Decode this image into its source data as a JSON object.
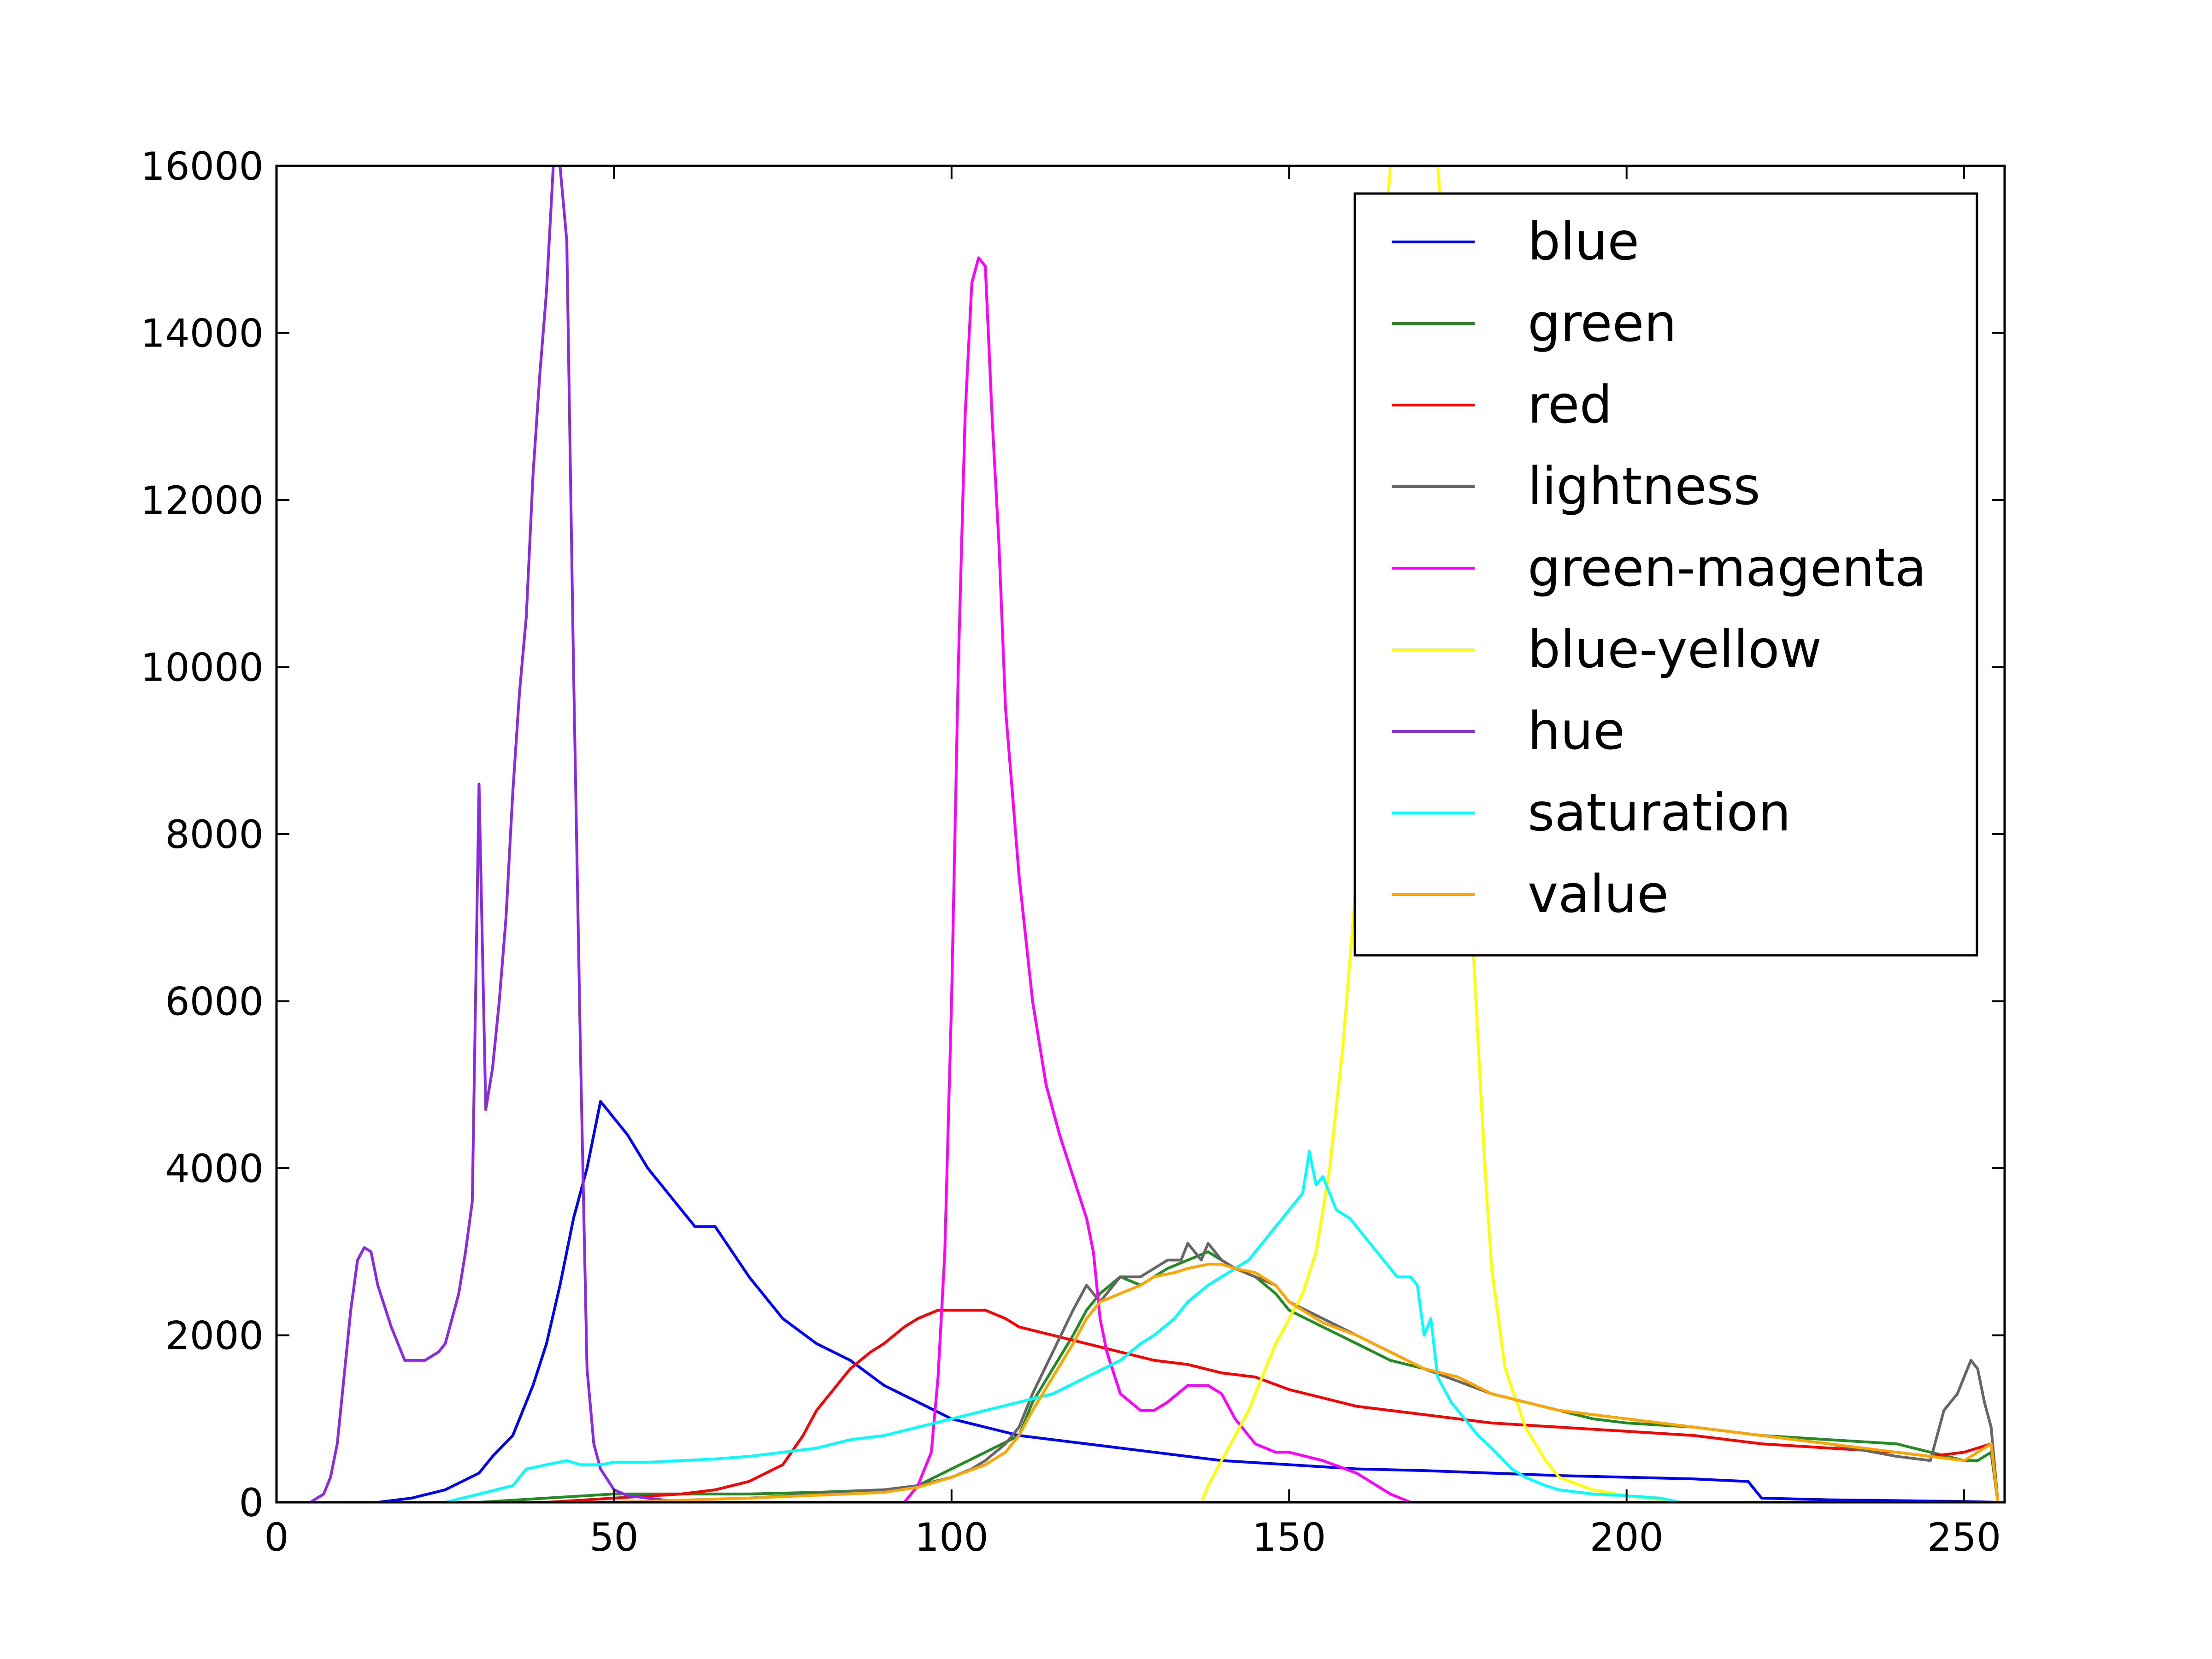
{
  "chart_data": {
    "type": "line",
    "title": "",
    "xlabel": "",
    "ylabel": "",
    "xlim": [
      0,
      256
    ],
    "ylim": [
      0,
      16000
    ],
    "xticks": [
      0,
      50,
      100,
      150,
      200,
      250
    ],
    "yticks": [
      0,
      2000,
      4000,
      6000,
      8000,
      10000,
      12000,
      14000,
      16000
    ],
    "grid": false,
    "legend": "top-right",
    "series": [
      {
        "name": "blue",
        "color": "#0000ff",
        "x": [
          0,
          15,
          20,
          25,
          30,
          32,
          35,
          38,
          40,
          42,
          44,
          46,
          48,
          50,
          52,
          55,
          57,
          60,
          62,
          65,
          70,
          75,
          80,
          85,
          90,
          95,
          100,
          105,
          110,
          115,
          120,
          125,
          130,
          140,
          150,
          160,
          170,
          180,
          190,
          200,
          210,
          218,
          220,
          230,
          240,
          250,
          255
        ],
        "y": [
          0,
          0,
          50,
          150,
          350,
          550,
          800,
          1400,
          1900,
          2600,
          3400,
          4000,
          4800,
          4600,
          4400,
          4000,
          3800,
          3500,
          3300,
          3300,
          2700,
          2200,
          1900,
          1700,
          1400,
          1200,
          1000,
          900,
          800,
          750,
          700,
          650,
          600,
          500,
          450,
          400,
          380,
          350,
          320,
          300,
          280,
          250,
          50,
          30,
          20,
          10,
          0
        ]
      },
      {
        "name": "green",
        "color": "#228b22",
        "x": [
          0,
          30,
          40,
          50,
          60,
          70,
          80,
          90,
          95,
          100,
          105,
          110,
          112,
          115,
          118,
          120,
          122,
          125,
          128,
          130,
          132,
          135,
          138,
          140,
          142,
          145,
          148,
          150,
          155,
          160,
          165,
          170,
          175,
          180,
          185,
          190,
          195,
          200,
          210,
          220,
          230,
          240,
          245,
          250,
          252,
          254,
          255
        ],
        "y": [
          0,
          0,
          50,
          100,
          100,
          100,
          120,
          150,
          200,
          400,
          600,
          800,
          1200,
          1600,
          2000,
          2300,
          2500,
          2700,
          2600,
          2700,
          2800,
          2900,
          3000,
          2900,
          2800,
          2700,
          2500,
          2300,
          2100,
          1900,
          1700,
          1600,
          1500,
          1300,
          1200,
          1100,
          1000,
          950,
          900,
          800,
          750,
          700,
          600,
          500,
          500,
          600,
          0
        ]
      },
      {
        "name": "red",
        "color": "#ff0000",
        "x": [
          0,
          40,
          50,
          60,
          65,
          70,
          75,
          78,
          80,
          82,
          85,
          88,
          90,
          93,
          95,
          98,
          100,
          103,
          105,
          108,
          110,
          115,
          120,
          125,
          130,
          135,
          140,
          145,
          150,
          155,
          160,
          165,
          170,
          180,
          190,
          200,
          210,
          220,
          230,
          240,
          245,
          250,
          252,
          254,
          255
        ],
        "y": [
          0,
          0,
          50,
          100,
          150,
          250,
          450,
          800,
          1100,
          1300,
          1600,
          1800,
          1900,
          2100,
          2200,
          2300,
          2300,
          2300,
          2300,
          2200,
          2100,
          2000,
          1900,
          1800,
          1700,
          1650,
          1550,
          1500,
          1350,
          1250,
          1150,
          1100,
          1050,
          950,
          900,
          850,
          800,
          700,
          650,
          600,
          550,
          600,
          650,
          700,
          0
        ]
      },
      {
        "name": "lightness",
        "color": "#666666",
        "x": [
          0,
          50,
          70,
          90,
          95,
          100,
          103,
          105,
          108,
          110,
          112,
          115,
          118,
          120,
          122,
          125,
          128,
          130,
          132,
          134,
          135,
          137,
          138,
          140,
          142,
          145,
          148,
          150,
          155,
          160,
          165,
          170,
          175,
          180,
          190,
          200,
          210,
          220,
          230,
          240,
          245,
          247,
          249,
          251,
          252,
          253,
          254,
          255
        ],
        "y": [
          0,
          0,
          50,
          150,
          200,
          300,
          400,
          500,
          700,
          900,
          1300,
          1800,
          2300,
          2600,
          2400,
          2700,
          2700,
          2800,
          2900,
          2900,
          3100,
          2900,
          3100,
          2900,
          2800,
          2700,
          2600,
          2400,
          2200,
          2000,
          1800,
          1600,
          1450,
          1300,
          1100,
          1000,
          900,
          800,
          700,
          550,
          500,
          1100,
          1300,
          1700,
          1600,
          1200,
          900,
          0
        ]
      },
      {
        "name": "green-magenta",
        "color": "#ff00ff",
        "x": [
          0,
          93,
          95,
          97,
          98,
          99,
          100,
          101,
          102,
          103,
          104,
          105,
          106,
          107,
          108,
          110,
          112,
          114,
          116,
          118,
          120,
          121,
          122,
          123,
          125,
          128,
          130,
          132,
          135,
          138,
          140,
          142,
          145,
          148,
          150,
          155,
          160,
          165,
          168,
          255
        ],
        "y": [
          0,
          0,
          200,
          600,
          1500,
          3000,
          6000,
          10000,
          13000,
          14600,
          14900,
          14800,
          13000,
          11500,
          9500,
          7500,
          6000,
          5000,
          4400,
          3900,
          3400,
          3000,
          2200,
          1800,
          1300,
          1100,
          1100,
          1200,
          1400,
          1400,
          1300,
          1000,
          700,
          600,
          600,
          500,
          350,
          100,
          0,
          0
        ]
      },
      {
        "name": "blue-yellow",
        "color": "#ffff00",
        "x": [
          0,
          137,
          138,
          140,
          142,
          144,
          146,
          148,
          150,
          152,
          154,
          156,
          158,
          160,
          161,
          162,
          163,
          164,
          165,
          166,
          167,
          168,
          169,
          170,
          171,
          172,
          173,
          174,
          175,
          176,
          177,
          178,
          179,
          180,
          182,
          185,
          188,
          190,
          195,
          200,
          205,
          208,
          255
        ],
        "y": [
          0,
          0,
          200,
          500,
          800,
          1100,
          1500,
          1900,
          2200,
          2500,
          3000,
          4000,
          5500,
          7500,
          9500,
          11500,
          13500,
          15000,
          16000,
          16000,
          16000,
          16000,
          16000,
          16000,
          16000,
          16000,
          15000,
          13000,
          11000,
          9000,
          7000,
          5500,
          4000,
          2800,
          1600,
          900,
          500,
          300,
          150,
          80,
          30,
          0,
          0
        ]
      },
      {
        "name": "hue",
        "color": "#8a2be2",
        "x": [
          0,
          5,
          7,
          8,
          9,
          10,
          11,
          12,
          13,
          14,
          15,
          17,
          19,
          20,
          22,
          24,
          25,
          26,
          27,
          28,
          29,
          30,
          31,
          32,
          33,
          34,
          35,
          36,
          37,
          38,
          39,
          40,
          41,
          42,
          43,
          44,
          45,
          46,
          47,
          48,
          50,
          52,
          55,
          60,
          255
        ],
        "y": [
          0,
          0,
          100,
          300,
          700,
          1500,
          2300,
          2900,
          3050,
          3000,
          2600,
          2100,
          1700,
          1700,
          1700,
          1800,
          1900,
          2200,
          2500,
          3000,
          3600,
          8600,
          4700,
          5200,
          6000,
          7000,
          8500,
          9700,
          10600,
          12300,
          13500,
          14500,
          16000,
          16000,
          15100,
          10000,
          5500,
          1600,
          700,
          400,
          150,
          80,
          50,
          0,
          0
        ]
      },
      {
        "name": "saturation",
        "color": "#00ffff",
        "x": [
          0,
          25,
          30,
          35,
          37,
          40,
          43,
          45,
          48,
          50,
          55,
          60,
          65,
          70,
          75,
          80,
          85,
          90,
          95,
          100,
          105,
          110,
          115,
          120,
          125,
          128,
          130,
          133,
          135,
          138,
          140,
          142,
          144,
          146,
          148,
          150,
          152,
          153,
          154,
          155,
          157,
          159,
          160,
          162,
          164,
          166,
          168,
          169,
          170,
          171,
          172,
          174,
          176,
          178,
          180,
          183,
          185,
          188,
          190,
          195,
          200,
          205,
          208,
          255
        ],
        "y": [
          0,
          0,
          100,
          200,
          400,
          450,
          500,
          450,
          450,
          480,
          480,
          500,
          520,
          550,
          600,
          650,
          750,
          800,
          900,
          1000,
          1100,
          1200,
          1300,
          1500,
          1700,
          1900,
          2000,
          2200,
          2400,
          2600,
          2700,
          2800,
          2900,
          3100,
          3300,
          3500,
          3700,
          4200,
          3800,
          3900,
          3500,
          3400,
          3300,
          3100,
          2900,
          2700,
          2700,
          2600,
          2000,
          2200,
          1500,
          1200,
          1000,
          800,
          650,
          400,
          300,
          200,
          150,
          100,
          80,
          50,
          0,
          0
        ]
      },
      {
        "name": "value",
        "color": "#ffa500",
        "x": [
          0,
          50,
          70,
          90,
          95,
          100,
          105,
          108,
          110,
          112,
          115,
          118,
          120,
          122,
          125,
          128,
          130,
          133,
          135,
          138,
          140,
          142,
          145,
          148,
          150,
          155,
          160,
          165,
          170,
          175,
          180,
          190,
          200,
          210,
          220,
          230,
          240,
          245,
          250,
          252,
          254,
          255
        ],
        "y": [
          0,
          0,
          50,
          120,
          180,
          300,
          450,
          600,
          800,
          1100,
          1500,
          1900,
          2200,
          2400,
          2500,
          2600,
          2700,
          2750,
          2800,
          2850,
          2850,
          2800,
          2750,
          2600,
          2400,
          2150,
          2000,
          1800,
          1600,
          1500,
          1300,
          1100,
          1000,
          900,
          800,
          700,
          600,
          550,
          500,
          600,
          700,
          0
        ]
      }
    ]
  }
}
